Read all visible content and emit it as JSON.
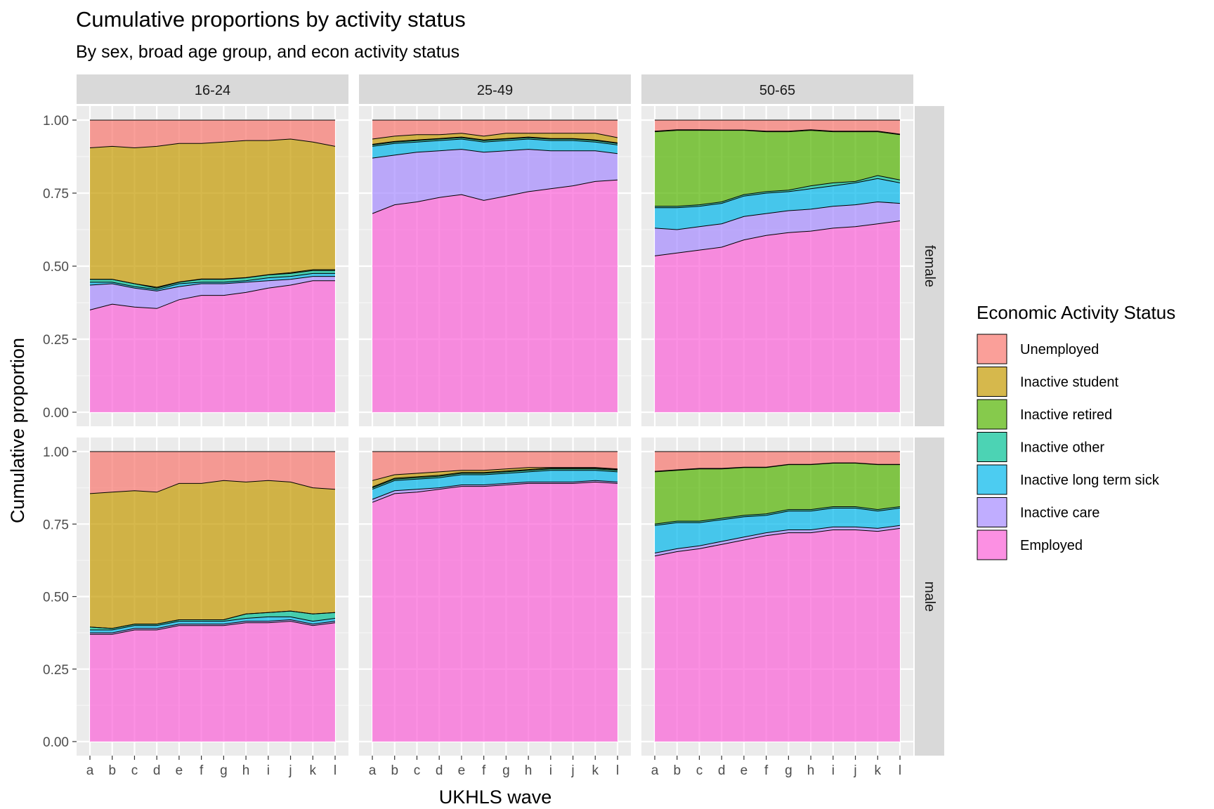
{
  "chart_data": {
    "type": "area",
    "title": "Cumulative proportions by activity status",
    "subtitle": "By sex, broad age group, and econ activity status",
    "xlabel": "UKHLS wave",
    "ylabel": "Cumulative proportion",
    "x": [
      "a",
      "b",
      "c",
      "d",
      "e",
      "f",
      "g",
      "h",
      "i",
      "j",
      "k",
      "l"
    ],
    "ylim": [
      0,
      1
    ],
    "y_ticks": [
      "0.00",
      "0.25",
      "0.50",
      "0.75",
      "1.00"
    ],
    "grid": true,
    "stacked": true,
    "col_facets": [
      "16-24",
      "25-49",
      "50-65"
    ],
    "row_facets": [
      "female",
      "male"
    ],
    "legend": {
      "title": "Economic Activity Status",
      "position": "right",
      "entries": [
        "Unemployed",
        "Inactive student",
        "Inactive retired",
        "Inactive other",
        "Inactive long term sick",
        "Inactive care",
        "Employed"
      ]
    },
    "stack_order_bottom_to_top": [
      "Employed",
      "Inactive care",
      "Inactive long term sick",
      "Inactive other",
      "Inactive retired",
      "Inactive student",
      "Unemployed"
    ],
    "colors": {
      "Unemployed": "#F8766D",
      "Inactive student": "#C49A00",
      "Inactive retired": "#53B400",
      "Inactive other": "#00C094",
      "Inactive long term sick": "#00B6EB",
      "Inactive care": "#A58AFF",
      "Employed": "#FB61D7"
    },
    "panels": [
      {
        "age_group": "16-24",
        "sex": "female",
        "cumulative": {
          "Employed": [
            0.35,
            0.37,
            0.36,
            0.355,
            0.385,
            0.4,
            0.4,
            0.41,
            0.425,
            0.435,
            0.45,
            0.45
          ],
          "Inactive care": [
            0.435,
            0.44,
            0.425,
            0.415,
            0.43,
            0.44,
            0.44,
            0.445,
            0.45,
            0.455,
            0.465,
            0.465
          ],
          "Inactive long term sick": [
            0.445,
            0.445,
            0.43,
            0.42,
            0.44,
            0.445,
            0.445,
            0.45,
            0.46,
            0.465,
            0.475,
            0.475
          ],
          "Inactive other": [
            0.455,
            0.455,
            0.44,
            0.425,
            0.445,
            0.455,
            0.455,
            0.46,
            0.47,
            0.475,
            0.485,
            0.485
          ],
          "Inactive retired": [
            0.455,
            0.455,
            0.44,
            0.428,
            0.446,
            0.456,
            0.456,
            0.461,
            0.471,
            0.478,
            0.488,
            0.488
          ],
          "Inactive student": [
            0.905,
            0.91,
            0.905,
            0.91,
            0.92,
            0.92,
            0.925,
            0.93,
            0.93,
            0.935,
            0.925,
            0.91
          ],
          "Unemployed": [
            1,
            1,
            1,
            1,
            1,
            1,
            1,
            1,
            1,
            1,
            1,
            1
          ]
        }
      },
      {
        "age_group": "25-49",
        "sex": "female",
        "cumulative": {
          "Employed": [
            0.68,
            0.71,
            0.72,
            0.735,
            0.745,
            0.725,
            0.74,
            0.755,
            0.765,
            0.775,
            0.79,
            0.795
          ],
          "Inactive care": [
            0.87,
            0.88,
            0.89,
            0.895,
            0.9,
            0.89,
            0.895,
            0.9,
            0.895,
            0.895,
            0.895,
            0.885
          ],
          "Inactive long term sick": [
            0.91,
            0.92,
            0.925,
            0.93,
            0.935,
            0.925,
            0.93,
            0.935,
            0.93,
            0.93,
            0.925,
            0.915
          ],
          "Inactive other": [
            0.915,
            0.925,
            0.93,
            0.935,
            0.94,
            0.93,
            0.935,
            0.94,
            0.935,
            0.935,
            0.93,
            0.92
          ],
          "Inactive retired": [
            0.917,
            0.927,
            0.932,
            0.937,
            0.942,
            0.932,
            0.937,
            0.942,
            0.937,
            0.937,
            0.932,
            0.922
          ],
          "Inactive student": [
            0.935,
            0.945,
            0.95,
            0.95,
            0.955,
            0.945,
            0.955,
            0.955,
            0.955,
            0.955,
            0.955,
            0.94
          ],
          "Unemployed": [
            1,
            1,
            1,
            1,
            1,
            1,
            1,
            1,
            1,
            1,
            1,
            1
          ]
        }
      },
      {
        "age_group": "50-65",
        "sex": "female",
        "cumulative": {
          "Employed": [
            0.535,
            0.545,
            0.555,
            0.565,
            0.59,
            0.605,
            0.615,
            0.62,
            0.63,
            0.635,
            0.645,
            0.655
          ],
          "Inactive care": [
            0.63,
            0.625,
            0.635,
            0.645,
            0.67,
            0.68,
            0.69,
            0.695,
            0.705,
            0.71,
            0.72,
            0.715
          ],
          "Inactive long term sick": [
            0.7,
            0.7,
            0.705,
            0.715,
            0.74,
            0.75,
            0.755,
            0.765,
            0.775,
            0.785,
            0.8,
            0.785
          ],
          "Inactive other": [
            0.705,
            0.705,
            0.71,
            0.72,
            0.745,
            0.755,
            0.76,
            0.775,
            0.785,
            0.79,
            0.81,
            0.795
          ],
          "Inactive retired": [
            0.96,
            0.965,
            0.965,
            0.965,
            0.965,
            0.96,
            0.96,
            0.965,
            0.96,
            0.96,
            0.96,
            0.95
          ],
          "Inactive student": [
            0.962,
            0.967,
            0.967,
            0.966,
            0.966,
            0.962,
            0.962,
            0.967,
            0.962,
            0.962,
            0.962,
            0.952
          ],
          "Unemployed": [
            1,
            1,
            1,
            1,
            1,
            1,
            1,
            1,
            1,
            1,
            1,
            1
          ]
        }
      },
      {
        "age_group": "16-24",
        "sex": "male",
        "cumulative": {
          "Employed": [
            0.37,
            0.37,
            0.385,
            0.385,
            0.4,
            0.4,
            0.4,
            0.41,
            0.41,
            0.415,
            0.4,
            0.41
          ],
          "Inactive care": [
            0.375,
            0.375,
            0.39,
            0.39,
            0.405,
            0.405,
            0.405,
            0.415,
            0.415,
            0.42,
            0.405,
            0.415
          ],
          "Inactive long term sick": [
            0.385,
            0.385,
            0.4,
            0.4,
            0.415,
            0.415,
            0.415,
            0.425,
            0.43,
            0.43,
            0.415,
            0.425
          ],
          "Inactive other": [
            0.395,
            0.39,
            0.405,
            0.405,
            0.42,
            0.42,
            0.42,
            0.44,
            0.445,
            0.45,
            0.44,
            0.445
          ],
          "Inactive retired": [
            0.395,
            0.39,
            0.405,
            0.405,
            0.42,
            0.42,
            0.42,
            0.44,
            0.445,
            0.45,
            0.44,
            0.445
          ],
          "Inactive student": [
            0.855,
            0.86,
            0.865,
            0.86,
            0.89,
            0.89,
            0.9,
            0.895,
            0.9,
            0.895,
            0.875,
            0.87
          ],
          "Unemployed": [
            1,
            1,
            1,
            1,
            1,
            1,
            1,
            1,
            1,
            1,
            1,
            1
          ]
        }
      },
      {
        "age_group": "25-49",
        "sex": "male",
        "cumulative": {
          "Employed": [
            0.825,
            0.855,
            0.86,
            0.87,
            0.88,
            0.88,
            0.885,
            0.89,
            0.89,
            0.89,
            0.895,
            0.89
          ],
          "Inactive care": [
            0.835,
            0.865,
            0.87,
            0.875,
            0.885,
            0.885,
            0.89,
            0.895,
            0.895,
            0.895,
            0.9,
            0.895
          ],
          "Inactive long term sick": [
            0.87,
            0.9,
            0.905,
            0.91,
            0.92,
            0.92,
            0.925,
            0.93,
            0.935,
            0.935,
            0.935,
            0.93
          ],
          "Inactive other": [
            0.875,
            0.905,
            0.91,
            0.915,
            0.925,
            0.925,
            0.93,
            0.935,
            0.94,
            0.94,
            0.94,
            0.935
          ],
          "Inactive retired": [
            0.878,
            0.908,
            0.913,
            0.918,
            0.928,
            0.928,
            0.933,
            0.938,
            0.943,
            0.943,
            0.943,
            0.938
          ],
          "Inactive student": [
            0.9,
            0.92,
            0.925,
            0.93,
            0.935,
            0.935,
            0.94,
            0.945,
            0.945,
            0.945,
            0.945,
            0.94
          ],
          "Unemployed": [
            1,
            1,
            1,
            1,
            1,
            1,
            1,
            1,
            1,
            1,
            1,
            1
          ]
        }
      },
      {
        "age_group": "50-65",
        "sex": "male",
        "cumulative": {
          "Employed": [
            0.64,
            0.655,
            0.665,
            0.68,
            0.695,
            0.71,
            0.72,
            0.72,
            0.73,
            0.73,
            0.725,
            0.735
          ],
          "Inactive care": [
            0.65,
            0.665,
            0.675,
            0.69,
            0.705,
            0.72,
            0.73,
            0.73,
            0.74,
            0.74,
            0.735,
            0.745
          ],
          "Inactive long term sick": [
            0.745,
            0.755,
            0.755,
            0.765,
            0.775,
            0.78,
            0.795,
            0.795,
            0.805,
            0.805,
            0.795,
            0.805
          ],
          "Inactive other": [
            0.75,
            0.76,
            0.76,
            0.77,
            0.78,
            0.785,
            0.8,
            0.8,
            0.81,
            0.81,
            0.8,
            0.81
          ],
          "Inactive retired": [
            0.93,
            0.935,
            0.94,
            0.94,
            0.945,
            0.945,
            0.955,
            0.955,
            0.96,
            0.96,
            0.955,
            0.955
          ],
          "Inactive student": [
            0.932,
            0.937,
            0.942,
            0.942,
            0.946,
            0.946,
            0.956,
            0.956,
            0.961,
            0.961,
            0.956,
            0.956
          ],
          "Unemployed": [
            1,
            1,
            1,
            1,
            1,
            1,
            1,
            1,
            1,
            1,
            1,
            1
          ]
        }
      }
    ]
  }
}
